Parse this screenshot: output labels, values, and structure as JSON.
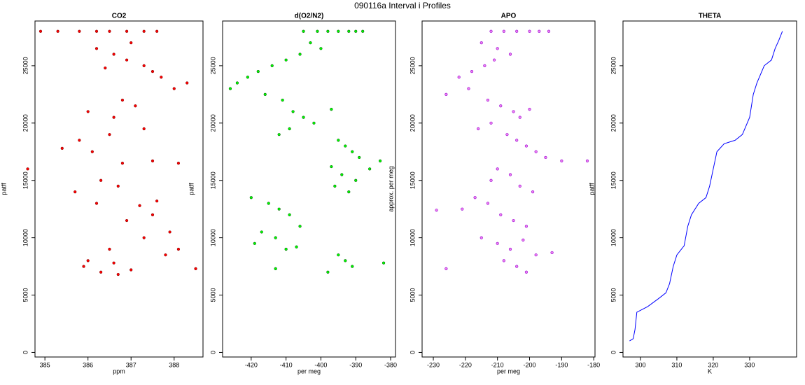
{
  "title": "090116a   Interval i Profiles",
  "chart_data": [
    {
      "type": "scatter",
      "title": "CO2",
      "xlabel": "ppm",
      "ylabel": "patff",
      "color": "#ff0000",
      "edgecolor": "#8b0000",
      "xlim": [
        384.77,
        388.67
      ],
      "ylim": [
        -400,
        28900
      ],
      "xticks": [
        385,
        386,
        387,
        388
      ],
      "yticks": [
        0,
        5000,
        10000,
        15000,
        20000,
        25000
      ],
      "x": [
        384.9,
        385.3,
        385.8,
        386.2,
        386.5,
        386.9,
        387.3,
        387.6,
        386.2,
        386.6,
        386.9,
        387.3,
        387.7,
        388.0,
        388.3,
        387.5,
        386.4,
        387.0,
        386.0,
        386.6,
        386.8,
        387.1,
        387.3,
        386.5,
        385.8,
        385.4,
        386.1,
        386.8,
        387.5,
        386.3,
        385.7,
        386.7,
        384.6,
        388.1,
        386.2,
        387.2,
        387.6,
        386.9,
        387.5,
        387.9,
        387.3,
        386.5,
        387.8,
        388.1,
        386.0,
        385.9,
        386.3,
        386.7,
        387.0,
        388.5,
        386.6
      ],
      "y": [
        28000,
        28000,
        28000,
        28000,
        28000,
        28000,
        28000,
        28000,
        26500,
        26000,
        25500,
        25000,
        24000,
        23000,
        23500,
        24500,
        24800,
        27000,
        21000,
        20500,
        22000,
        21500,
        19500,
        19000,
        18500,
        17800,
        17500,
        16500,
        16700,
        15000,
        14000,
        14500,
        16000,
        16500,
        13000,
        12800,
        13200,
        11500,
        12000,
        10500,
        10000,
        9000,
        8500,
        9000,
        8000,
        7500,
        7000,
        6800,
        7200,
        7300,
        7800
      ]
    },
    {
      "type": "scatter",
      "title": "d(O2/N2)",
      "xlabel": "per meg",
      "ylabel": "patff",
      "color": "#00ff00",
      "edgecolor": "#006400",
      "xlim": [
        -428.2,
        -378.6
      ],
      "ylim": [
        -400,
        28900
      ],
      "xticks": [
        -420,
        -410,
        -400,
        -390,
        -380
      ],
      "yticks": [
        0,
        5000,
        10000,
        15000,
        20000,
        25000
      ],
      "x": [
        -405,
        -401,
        -398,
        -395,
        -392,
        -390,
        -388,
        -403,
        -400,
        -406,
        -410,
        -414,
        -418,
        -421,
        -424,
        -426,
        -416,
        -411,
        -408,
        -405,
        -402,
        -397,
        -409,
        -412,
        -395,
        -393,
        -391,
        -389,
        -386,
        -383,
        -397,
        -394,
        -390,
        -396,
        -392,
        -420,
        -415,
        -412,
        -409,
        -406,
        -417,
        -413,
        -419,
        -410,
        -407,
        -395,
        -393,
        -391,
        -398,
        -382,
        -413
      ],
      "y": [
        28000,
        28000,
        28000,
        28000,
        28000,
        28000,
        28000,
        27000,
        26500,
        26000,
        25500,
        25000,
        24500,
        24000,
        23500,
        23000,
        22500,
        22000,
        21000,
        20500,
        20000,
        21200,
        19500,
        19000,
        18500,
        18000,
        17500,
        17000,
        16000,
        16700,
        16200,
        15500,
        15000,
        14500,
        14000,
        13500,
        13000,
        12500,
        12000,
        11000,
        10500,
        10000,
        9500,
        9000,
        9200,
        8500,
        8000,
        7500,
        7000,
        7800,
        7300
      ]
    },
    {
      "type": "scatter",
      "title": "APO",
      "xlabel": "per meg",
      "ylabel": "approx. per meg",
      "color": "#ee82ee",
      "edgecolor": "#9400d3",
      "xlim": [
        -233.5,
        -179.6
      ],
      "ylim": [
        -400,
        28900
      ],
      "xticks": [
        -230,
        -220,
        -210,
        -200,
        -190,
        -180
      ],
      "yticks": [
        0,
        5000,
        10000,
        15000,
        20000,
        25000
      ],
      "x": [
        -212,
        -208,
        -204,
        -200,
        -197,
        -194,
        -215,
        -210,
        -206,
        -211,
        -214,
        -218,
        -222,
        -226,
        -219,
        -213,
        -209,
        -205,
        -203,
        -200,
        -212,
        -216,
        -207,
        -204,
        -201,
        -198,
        -195,
        -190,
        -182,
        -210,
        -206,
        -212,
        -203,
        -199,
        -217,
        -213,
        -221,
        -229,
        -209,
        -205,
        -201,
        -215,
        -210,
        -206,
        -202,
        -198,
        -193,
        -208,
        -204,
        -201,
        -226
      ],
      "y": [
        28000,
        28000,
        28000,
        28000,
        28000,
        28000,
        27000,
        26500,
        26000,
        25500,
        25000,
        24500,
        24000,
        22500,
        23000,
        22000,
        21500,
        21000,
        20500,
        21200,
        20000,
        19500,
        19000,
        18500,
        18000,
        17500,
        17000,
        16700,
        16700,
        16000,
        15500,
        15000,
        14500,
        14000,
        13500,
        13000,
        12500,
        12400,
        12000,
        11500,
        11000,
        10000,
        9500,
        9000,
        9800,
        8500,
        8700,
        8000,
        7500,
        7000,
        7300
      ]
    },
    {
      "type": "line",
      "title": "THETA",
      "xlabel": "K",
      "ylabel": "patff",
      "color": "#0000ff",
      "xlim": [
        295.2,
        342.9
      ],
      "ylim": [
        -400,
        28900
      ],
      "xticks": [
        300,
        310,
        320,
        330
      ],
      "yticks": [
        0,
        5000,
        10000,
        15000,
        20000,
        25000
      ],
      "x": [
        297,
        298,
        298.5,
        299,
        302,
        305,
        307,
        308,
        309,
        310,
        312,
        313,
        314,
        316,
        318,
        319,
        320,
        321,
        323,
        326,
        328,
        330,
        331,
        332,
        334,
        336,
        337,
        338,
        339
      ],
      "y": [
        1000,
        1200,
        2000,
        3500,
        4000,
        4700,
        5200,
        6000,
        7500,
        8500,
        9300,
        11000,
        12000,
        13000,
        13500,
        14500,
        16000,
        17500,
        18200,
        18500,
        19000,
        20500,
        22500,
        23500,
        25000,
        25500,
        26500,
        27200,
        28000
      ]
    }
  ]
}
